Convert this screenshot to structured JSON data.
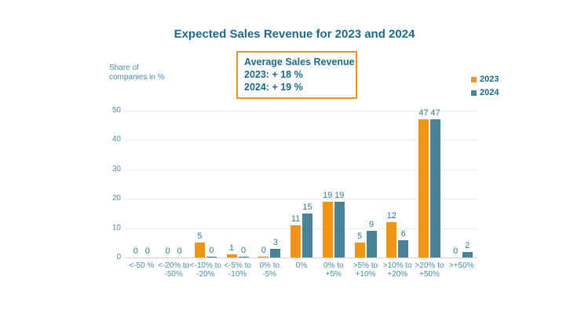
{
  "chart_data": {
    "type": "bar",
    "title": "Expected Sales Revenue for 2023 and 2024",
    "ylabel": "Share of\ncompanies in %",
    "xlabel": "",
    "ylim": [
      0,
      50
    ],
    "y_ticks": [
      0,
      10,
      20,
      30,
      40,
      50
    ],
    "grid": true,
    "legend_position": "top-right",
    "categories": [
      "<-50 %",
      "<-20% to\n-50%",
      "<-10% to\n-20%",
      "<-5% to\n-10%",
      "0% to\n-5%",
      "0%",
      "0% to\n+5%",
      ">5% to\n+10%",
      ">10% to\n+20%",
      ">20% to\n+50%",
      ">+50%"
    ],
    "series": [
      {
        "name": "2023",
        "color": "#F09416",
        "values": [
          0,
          0,
          5,
          1,
          0,
          11,
          19,
          5,
          12,
          47,
          0
        ],
        "sliver_indices": [
          4
        ]
      },
      {
        "name": "2024",
        "color": "#4A8398",
        "values": [
          0,
          0,
          0,
          0,
          3,
          15,
          19,
          9,
          6,
          47,
          2
        ],
        "sliver_indices": [
          2,
          3
        ]
      }
    ],
    "annotation": {
      "title": "Average Sales Revenue",
      "lines": [
        "2023: + 18 %",
        "2024: + 19 %"
      ]
    }
  },
  "colors": {
    "title_text": "#1B6A8C",
    "axis_label_text": "#4A8CA9",
    "data_label_text": "#35789B",
    "gridline": "#F2EAE6",
    "baseline": "#D2CFCC",
    "annotation_border": "#E8941E",
    "background": "#FFFFFF"
  }
}
